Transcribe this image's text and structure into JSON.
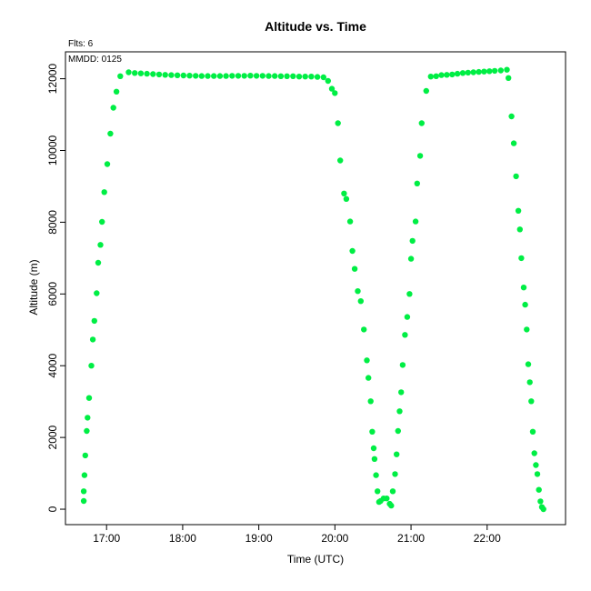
{
  "chart_data": {
    "type": "scatter",
    "title": "Altitude  vs. Time",
    "xlabel": "Time (UTC)",
    "ylabel": "Altitude (m)",
    "annotations": [
      "Flts: 6",
      "MMDD: 0125"
    ],
    "x_ticks": [
      "17:00",
      "18:00",
      "19:00",
      "20:00",
      "21:00",
      "22:00"
    ],
    "y_ticks": [
      "0",
      "2000",
      "4000",
      "6000",
      "8000",
      "10000",
      "12000"
    ],
    "x_tick_hours": [
      17,
      18,
      19,
      20,
      21,
      22
    ],
    "y_tick_values": [
      0,
      2000,
      4000,
      6000,
      8000,
      10000,
      12000
    ],
    "xlim_hours": [
      16.46,
      23.03
    ],
    "ylim": [
      -430,
      12750
    ],
    "grid": false,
    "point_color": "#00ee44",
    "series": [
      {
        "x_hours": [
          16.7,
          16.7,
          16.71,
          16.72,
          16.74,
          16.75,
          16.77,
          16.8,
          16.82,
          16.84,
          16.87,
          16.89,
          16.92,
          16.94,
          16.97,
          17.01,
          17.05,
          17.09,
          17.13,
          17.18,
          17.29,
          17.37,
          17.45,
          17.53,
          17.61,
          17.69,
          17.77,
          17.85,
          17.93,
          18.01,
          18.09,
          18.17,
          18.25,
          18.33,
          18.41,
          18.49,
          18.57,
          18.65,
          18.73,
          18.81,
          18.89,
          18.97,
          19.05,
          19.13,
          19.21,
          19.29,
          19.37,
          19.45,
          19.53,
          19.61,
          19.69,
          19.77,
          19.85
        ],
        "altitude_m": [
          230,
          500,
          950,
          1500,
          2180,
          2550,
          3100,
          4000,
          4730,
          5250,
          6020,
          6870,
          7370,
          8010,
          8840,
          9620,
          10470,
          11190,
          11640,
          12070,
          12180,
          12160,
          12150,
          12140,
          12130,
          12120,
          12110,
          12100,
          12095,
          12090,
          12085,
          12080,
          12075,
          12075,
          12075,
          12075,
          12075,
          12080,
          12080,
          12080,
          12085,
          12080,
          12080,
          12075,
          12075,
          12070,
          12070,
          12070,
          12060,
          12060,
          12060,
          12050,
          12040
        ]
      },
      {
        "x_hours": [
          19.91,
          19.96,
          20.0,
          20.04,
          20.07,
          20.12,
          20.15,
          20.2,
          20.23,
          20.26,
          20.3,
          20.34,
          20.38,
          20.42,
          20.44,
          20.47,
          20.49,
          20.51,
          20.52,
          20.54,
          20.56,
          20.58,
          20.6,
          20.64,
          20.68,
          20.72,
          20.74,
          20.76,
          20.79,
          20.81,
          20.83,
          20.85,
          20.87,
          20.89,
          20.92,
          20.95,
          20.98,
          21.0,
          21.02,
          21.06,
          21.08,
          21.12,
          21.14,
          21.2,
          21.26,
          21.33,
          21.4,
          21.47,
          21.54,
          21.61,
          21.68,
          21.75,
          21.82,
          21.89,
          21.96,
          22.03,
          22.1,
          22.18,
          22.26
        ],
        "altitude_m": [
          11940,
          11720,
          11600,
          10760,
          9720,
          8800,
          8650,
          8020,
          7200,
          6700,
          6080,
          5800,
          5010,
          4150,
          3660,
          3010,
          2160,
          1700,
          1400,
          950,
          500,
          200,
          230,
          300,
          300,
          150,
          100,
          500,
          980,
          1530,
          2180,
          2730,
          3260,
          4020,
          4860,
          5360,
          6000,
          6980,
          7480,
          8020,
          9080,
          9850,
          10760,
          11660,
          12060,
          12070,
          12100,
          12110,
          12120,
          12140,
          12160,
          12170,
          12180,
          12190,
          12200,
          12210,
          12220,
          12230,
          12250
        ]
      },
      {
        "x_hours": [
          22.28,
          22.32,
          22.35,
          22.38,
          22.41,
          22.43,
          22.45,
          22.48,
          22.5,
          22.52,
          22.54,
          22.56,
          22.58,
          22.6,
          22.62,
          22.64,
          22.66,
          22.68,
          22.7,
          22.72,
          22.74
        ],
        "altitude_m": [
          12020,
          10950,
          10200,
          9280,
          8320,
          7800,
          7000,
          6180,
          5700,
          5010,
          4040,
          3540,
          3010,
          2160,
          1560,
          1230,
          980,
          540,
          220,
          60,
          0
        ]
      }
    ]
  }
}
